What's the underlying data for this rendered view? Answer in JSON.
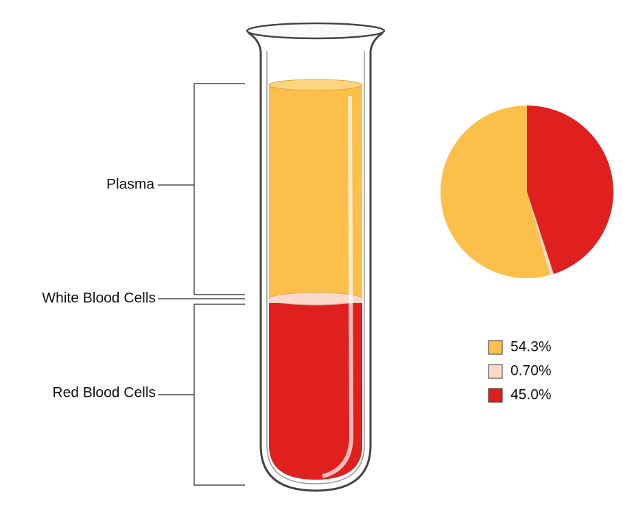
{
  "labels": {
    "plasma": "Plasma",
    "white_blood_cells": "White Blood Cells",
    "red_blood_cells": "Red Blood Cells"
  },
  "chart_data": {
    "type": "pie",
    "values": [
      54.3,
      0.7,
      45.0
    ],
    "value_labels": [
      "54.3%",
      "0.70%",
      "45.0%"
    ],
    "colors": [
      "#fcbf49",
      "#fcd9c8",
      "#e01f1f"
    ]
  }
}
